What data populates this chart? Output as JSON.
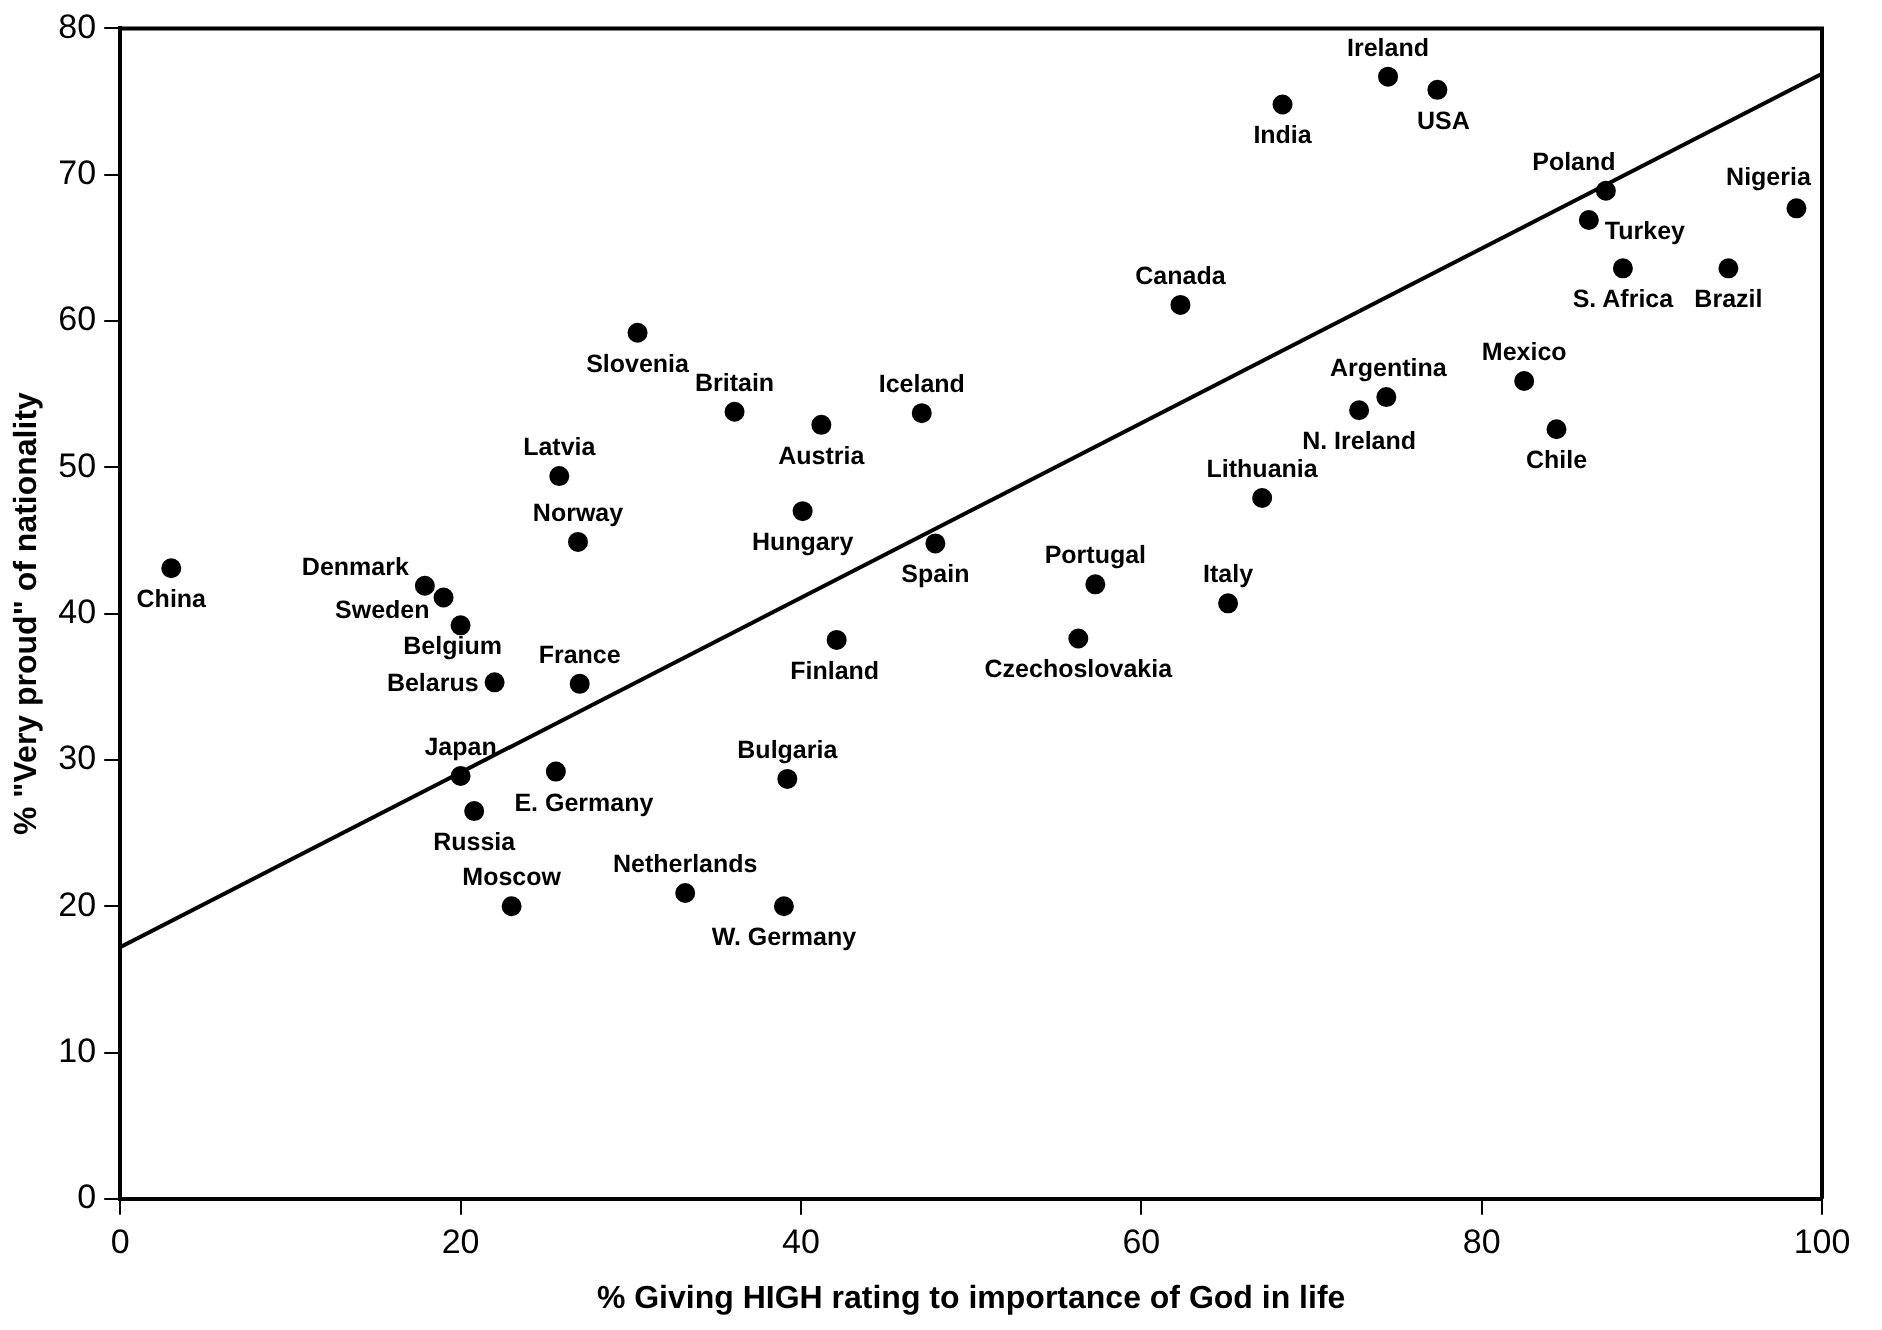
{
  "chart_data": {
    "type": "scatter",
    "xlabel": "% Giving HIGH rating to importance of God in life",
    "ylabel": "% \"Very proud\" of nationality",
    "xlim": [
      0,
      100
    ],
    "ylim": [
      0,
      80
    ],
    "xticks": [
      0,
      20,
      40,
      60,
      80,
      100
    ],
    "yticks": [
      0,
      10,
      20,
      30,
      40,
      50,
      60,
      70,
      80
    ],
    "grid": false,
    "legend": false,
    "marker": "circle",
    "series": [
      {
        "type": "scatter",
        "color": "#000000",
        "x": [
          3.0,
          17.9,
          19.0,
          20.0,
          25.8,
          26.9,
          30.4,
          36.1,
          41.2,
          40.1,
          47.1,
          47.9,
          42.1,
          22.0,
          27.0,
          20.0,
          25.6,
          20.8,
          23.0,
          33.2,
          39.0,
          39.2,
          74.5,
          68.3,
          77.4,
          62.3,
          87.3,
          86.3,
          98.5,
          88.3,
          94.5,
          82.5,
          74.4,
          72.8,
          84.4,
          67.1,
          57.3,
          65.1,
          56.3
        ],
        "values": [
          43.1,
          41.9,
          41.1,
          39.2,
          49.4,
          44.9,
          59.2,
          53.8,
          52.9,
          47.0,
          53.7,
          44.8,
          38.2,
          35.3,
          35.2,
          28.9,
          29.2,
          26.5,
          20.0,
          20.9,
          20.0,
          28.7,
          76.7,
          74.8,
          75.8,
          61.1,
          68.9,
          66.9,
          67.7,
          63.6,
          63.6,
          55.9,
          54.8,
          53.9,
          52.6,
          47.9,
          42.0,
          40.7,
          38.3
        ]
      },
      {
        "type": "line",
        "color": "#000000",
        "marker": "none",
        "line_style": "solid",
        "x": [
          0,
          100
        ],
        "values": [
          17.2,
          76.9
        ]
      }
    ],
    "annotations": [
      {
        "text": "China",
        "x": 3.0,
        "y": 43.1
      },
      {
        "text": "Denmark",
        "x": 17.9,
        "y": 41.9
      },
      {
        "text": "Sweden",
        "x": 19.0,
        "y": 41.1
      },
      {
        "text": "Belgium",
        "x": 20.0,
        "y": 39.2
      },
      {
        "text": "Latvia",
        "x": 25.8,
        "y": 49.4
      },
      {
        "text": "Norway",
        "x": 26.9,
        "y": 44.9
      },
      {
        "text": "Slovenia",
        "x": 30.4,
        "y": 59.2
      },
      {
        "text": "Britain",
        "x": 36.1,
        "y": 53.8
      },
      {
        "text": "Austria",
        "x": 41.2,
        "y": 52.9
      },
      {
        "text": "Hungary",
        "x": 40.1,
        "y": 47.0
      },
      {
        "text": "Iceland",
        "x": 47.1,
        "y": 53.7
      },
      {
        "text": "Spain",
        "x": 47.9,
        "y": 44.8
      },
      {
        "text": "Finland",
        "x": 42.1,
        "y": 38.2
      },
      {
        "text": "Belarus",
        "x": 22.0,
        "y": 35.3
      },
      {
        "text": "France",
        "x": 27.0,
        "y": 35.2
      },
      {
        "text": "Japan",
        "x": 20.0,
        "y": 28.9
      },
      {
        "text": "E. Germany",
        "x": 25.6,
        "y": 29.2
      },
      {
        "text": "Russia",
        "x": 20.8,
        "y": 26.5
      },
      {
        "text": "Moscow",
        "x": 23.0,
        "y": 20.0
      },
      {
        "text": "Netherlands",
        "x": 33.2,
        "y": 20.9
      },
      {
        "text": "W. Germany",
        "x": 39.0,
        "y": 20.0
      },
      {
        "text": "Bulgaria",
        "x": 39.2,
        "y": 28.7
      },
      {
        "text": "Ireland",
        "x": 74.5,
        "y": 76.7
      },
      {
        "text": "India",
        "x": 68.3,
        "y": 74.8
      },
      {
        "text": "USA",
        "x": 77.4,
        "y": 75.8
      },
      {
        "text": "Canada",
        "x": 62.3,
        "y": 61.1
      },
      {
        "text": "Poland",
        "x": 87.3,
        "y": 68.9
      },
      {
        "text": "Turkey",
        "x": 86.3,
        "y": 66.9
      },
      {
        "text": "Nigeria",
        "x": 98.5,
        "y": 67.7
      },
      {
        "text": "S. Africa",
        "x": 88.3,
        "y": 63.6
      },
      {
        "text": "Brazil",
        "x": 94.5,
        "y": 63.6
      },
      {
        "text": "Mexico",
        "x": 82.5,
        "y": 55.9
      },
      {
        "text": "Argentina",
        "x": 74.4,
        "y": 54.8
      },
      {
        "text": "N. Ireland",
        "x": 72.8,
        "y": 53.9
      },
      {
        "text": "Chile",
        "x": 84.4,
        "y": 52.6
      },
      {
        "text": "Lithuania",
        "x": 67.1,
        "y": 47.9
      },
      {
        "text": "Portugal",
        "x": 57.3,
        "y": 42.0
      },
      {
        "text": "Italy",
        "x": 65.1,
        "y": 40.7
      },
      {
        "text": "Czechoslovakia",
        "x": 56.3,
        "y": 38.3
      }
    ]
  }
}
